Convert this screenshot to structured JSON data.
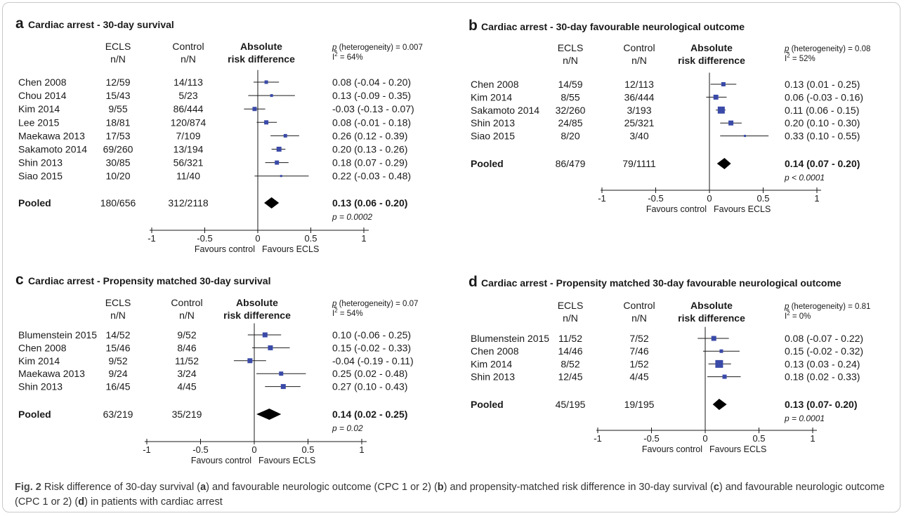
{
  "chart_data": [
    {
      "type": "forest",
      "letter": "a",
      "title": "Cardiac arrest - 30-day survival",
      "col_headers": {
        "ecls": [
          "ECLS",
          "n/N"
        ],
        "control": [
          "Control",
          "n/N"
        ],
        "effect": [
          "Absolute",
          "risk difference"
        ]
      },
      "heterogeneity": {
        "p": "(heterogeneity) = 0.007",
        "i2": "= 64%"
      },
      "xlim": [
        -1,
        1
      ],
      "xticks": [
        -1,
        -0.5,
        0,
        0.5,
        1
      ],
      "xtick_labels": [
        "-1",
        "-0.5",
        "0",
        "0.5",
        "1"
      ],
      "favours": [
        "Favours control",
        "Favours ECLS"
      ],
      "studies": [
        {
          "name": "Chen 2008",
          "ecls": "12/59",
          "control": "14/113",
          "est": 0.08,
          "lo": -0.04,
          "hi": 0.2,
          "ci_text": "0.08 (-0.04 - 0.20)",
          "w": 5
        },
        {
          "name": "Chou 2014",
          "ecls": "15/43",
          "control": "5/23",
          "est": 0.13,
          "lo": -0.09,
          "hi": 0.35,
          "ci_text": "0.13 (-0.09 - 0.35)",
          "w": 4
        },
        {
          "name": "Kim 2014",
          "ecls": "9/55",
          "control": "86/444",
          "est": -0.03,
          "lo": -0.13,
          "hi": 0.07,
          "ci_text": "-0.03 (-0.13 - 0.07)",
          "w": 6
        },
        {
          "name": "Lee 2015",
          "ecls": "18/81",
          "control": "120/874",
          "est": 0.08,
          "lo": -0.01,
          "hi": 0.18,
          "ci_text": "0.08 (-0.01 - 0.18)",
          "w": 6
        },
        {
          "name": "Maekawa 2013",
          "ecls": "17/53",
          "control": "7/109",
          "est": 0.26,
          "lo": 0.12,
          "hi": 0.39,
          "ci_text": "0.26 (0.12 - 0.39)",
          "w": 5
        },
        {
          "name": "Sakamoto 2014",
          "ecls": "69/260",
          "control": "13/194",
          "est": 0.2,
          "lo": 0.13,
          "hi": 0.26,
          "ci_text": "0.20 (0.13 - 0.26)",
          "w": 7
        },
        {
          "name": "Shin 2013",
          "ecls": "30/85",
          "control": "56/321",
          "est": 0.18,
          "lo": 0.07,
          "hi": 0.29,
          "ci_text": "0.18 (0.07 - 0.29)",
          "w": 6
        },
        {
          "name": "Siao 2015",
          "ecls": "10/20",
          "control": "11/40",
          "est": 0.22,
          "lo": -0.03,
          "hi": 0.48,
          "ci_text": "0.22 (-0.03 - 0.48)",
          "w": 3
        }
      ],
      "pooled": {
        "label": "Pooled",
        "ecls": "180/656",
        "control": "312/2118",
        "est": 0.13,
        "lo": 0.06,
        "hi": 0.2,
        "ci_text": "0.13 (0.06 - 0.20)",
        "p_text": "p = 0.0002"
      }
    },
    {
      "type": "forest",
      "letter": "b",
      "title": "Cardiac arrest - 30-day favourable neurological outcome",
      "col_headers": {
        "ecls": [
          "ECLS",
          "n/N"
        ],
        "control": [
          "Control",
          "n/N"
        ],
        "effect": [
          "Absolute",
          "risk difference"
        ]
      },
      "heterogeneity": {
        "p": "(heterogeneity) = 0.08",
        "i2": "= 52%"
      },
      "xlim": [
        -1,
        1
      ],
      "xticks": [
        -1,
        -0.5,
        0,
        0.5,
        1
      ],
      "xtick_labels": [
        "-1",
        "-0.5",
        "0",
        "0.5",
        "1"
      ],
      "favours": [
        "Favours control",
        "Favours ECLS"
      ],
      "studies": [
        {
          "name": "Chen 2008",
          "ecls": "14/59",
          "control": "12/113",
          "est": 0.13,
          "lo": 0.01,
          "hi": 0.25,
          "ci_text": "0.13 (0.01 - 0.25)",
          "w": 6
        },
        {
          "name": "Kim 2014",
          "ecls": "8/55",
          "control": "36/444",
          "est": 0.06,
          "lo": -0.03,
          "hi": 0.16,
          "ci_text": "0.06 (-0.03 - 0.16)",
          "w": 7
        },
        {
          "name": "Sakamoto 2014",
          "ecls": "32/260",
          "control": "3/193",
          "est": 0.11,
          "lo": 0.06,
          "hi": 0.15,
          "ci_text": "0.11 (0.06 - 0.15)",
          "w": 10
        },
        {
          "name": "Shin 2013",
          "ecls": "24/85",
          "control": "25/321",
          "est": 0.2,
          "lo": 0.1,
          "hi": 0.3,
          "ci_text": "0.20 (0.10 - 0.30)",
          "w": 7
        },
        {
          "name": "Siao 2015",
          "ecls": "8/20",
          "control": "3/40",
          "est": 0.33,
          "lo": 0.1,
          "hi": 0.55,
          "ci_text": "0.33 (0.10 - 0.55)",
          "w": 3
        }
      ],
      "pooled": {
        "label": "Pooled",
        "ecls": "86/479",
        "control": "79/1111",
        "est": 0.14,
        "lo": 0.07,
        "hi": 0.2,
        "ci_text": "0.14 (0.07 - 0.20)",
        "p_text": "p < 0.0001"
      }
    },
    {
      "type": "forest",
      "letter": "c",
      "title": "Cardiac arrest - Propensity matched 30-day survival",
      "col_headers": {
        "ecls": [
          "ECLS",
          "n/N"
        ],
        "control": [
          "Control",
          "n/N"
        ],
        "effect": [
          "Absolute",
          "risk difference"
        ]
      },
      "heterogeneity": {
        "p": "(heterogeneity) = 0.07",
        "i2": "= 54%"
      },
      "xlim": [
        -1,
        1
      ],
      "xticks": [
        -1,
        -0.5,
        0,
        0.5,
        1
      ],
      "xtick_labels": [
        "-1",
        "-0.5",
        "0",
        "0.5",
        "1"
      ],
      "favours": [
        "Favours control",
        "Favours ECLS"
      ],
      "studies": [
        {
          "name": "Blumenstein 2015",
          "ecls": "14/52",
          "control": "9/52",
          "est": 0.1,
          "lo": -0.06,
          "hi": 0.25,
          "ci_text": "0.10 (-0.06 - 0.25)",
          "w": 7
        },
        {
          "name": "Chen 2008",
          "ecls": "15/46",
          "control": "8/46",
          "est": 0.15,
          "lo": -0.02,
          "hi": 0.33,
          "ci_text": "0.15 (-0.02 - 0.33)",
          "w": 7
        },
        {
          "name": "Kim 2014",
          "ecls": "9/52",
          "control": "11/52",
          "est": -0.04,
          "lo": -0.19,
          "hi": 0.11,
          "ci_text": "-0.04 (-0.19 - 0.11)",
          "w": 7
        },
        {
          "name": "Maekawa 2013",
          "ecls": "9/24",
          "control": "3/24",
          "est": 0.25,
          "lo": 0.02,
          "hi": 0.48,
          "ci_text": "0.25 (0.02 - 0.48)",
          "w": 6
        },
        {
          "name": "Shin 2013",
          "ecls": "16/45",
          "control": "4/45",
          "est": 0.27,
          "lo": 0.1,
          "hi": 0.43,
          "ci_text": "0.27 (0.10 - 0.43)",
          "w": 7
        }
      ],
      "pooled": {
        "label": "Pooled",
        "ecls": "63/219",
        "control": "35/219",
        "est": 0.14,
        "lo": 0.02,
        "hi": 0.25,
        "ci_text": "0.14 (0.02 - 0.25)",
        "p_text": "p = 0.02"
      }
    },
    {
      "type": "forest",
      "letter": "d",
      "title": "Cardiac arrest - Propensity matched 30-day favourable neurological outcome",
      "col_headers": {
        "ecls": [
          "ECLS",
          "n/N"
        ],
        "control": [
          "Control",
          "n/N"
        ],
        "effect": [
          "Absolute",
          "risk difference"
        ]
      },
      "heterogeneity": {
        "p": "(heterogeneity) = 0.81",
        "i2": "= 0%"
      },
      "xlim": [
        -1,
        1
      ],
      "xticks": [
        -1,
        -0.5,
        0,
        0.5,
        1
      ],
      "xtick_labels": [
        "-1",
        "-0.5",
        "0",
        "0.5",
        "1"
      ],
      "favours": [
        "Favours control",
        "Favours ECLS"
      ],
      "studies": [
        {
          "name": "Blumenstein 2015",
          "ecls": "11/52",
          "control": "7/52",
          "est": 0.08,
          "lo": -0.07,
          "hi": 0.22,
          "ci_text": "0.08 (-0.07 - 0.22)",
          "w": 7
        },
        {
          "name": "Chen 2008",
          "ecls": "14/46",
          "control": "7/46",
          "est": 0.15,
          "lo": -0.02,
          "hi": 0.32,
          "ci_text": "0.15 (-0.02 - 0.32)",
          "w": 5
        },
        {
          "name": "Kim 2014",
          "ecls": "8/52",
          "control": "1/52",
          "est": 0.13,
          "lo": 0.03,
          "hi": 0.24,
          "ci_text": "0.13 (0.03 - 0.24)",
          "w": 11
        },
        {
          "name": "Shin 2013",
          "ecls": "12/45",
          "control": "4/45",
          "est": 0.18,
          "lo": 0.02,
          "hi": 0.33,
          "ci_text": "0.18 (0.02 - 0.33)",
          "w": 6
        }
      ],
      "pooled": {
        "label": "Pooled",
        "ecls": "45/195",
        "control": "19/195",
        "est": 0.13,
        "lo": 0.07,
        "hi": 0.2,
        "ci_text": "0.13 (0.07- 0.20)",
        "p_text": "p = 0.0001"
      }
    }
  ],
  "caption": {
    "label": "Fig. 2",
    "t1": "  Risk difference of 30-day survival (",
    "a": "a",
    "t2": ") and favourable neurologic outcome (CPC 1 or 2) (",
    "b": "b",
    "t3": ") and propensity-matched risk difference in 30-day survival (",
    "c": "c",
    "t4": ") and favourable neurologic outcome (CPC 1 or 2) (",
    "d": "d",
    "t5": ") in patients with cardiac arrest"
  },
  "colors": {
    "marker": "#3a4aa8",
    "ink": "#1a1a1a",
    "frame": "#c9c9c9"
  }
}
